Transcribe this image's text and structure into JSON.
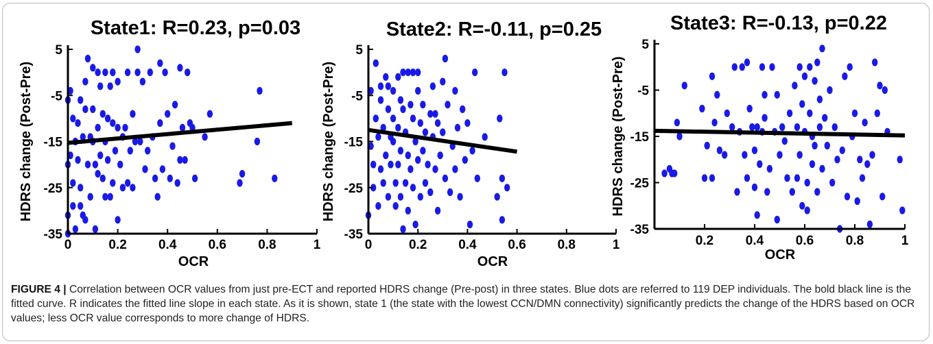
{
  "caption": {
    "label": "FIGURE 4 |",
    "text": "Correlation between OCR values from just pre-ECT and reported HDRS change (Pre-post) in three states. Blue dots are referred to 119 DEP individuals. The bold black line is the fitted curve. R indicates the fitted line slope in each state. As it is shown, state 1 (the state with the lowest CCN/DMN connectivity) significantly predicts the change of the HDRS based on OCR values; less OCR value corresponds to more change of HDRS."
  },
  "colors": {
    "dots": "#1a1ae6",
    "fit_line": "#000000"
  },
  "chart_data": [
    {
      "type": "scatter",
      "title": "State1: R=0.23, p=0.03",
      "xlabel": "OCR",
      "ylabel": "HDRS change (Post-Pre)",
      "xlim": [
        0,
        1
      ],
      "ylim": [
        -35,
        5
      ],
      "xticks": [
        "0",
        "0.2",
        "0.4",
        "0.6",
        "0.8",
        "1"
      ],
      "yticks": [
        "5",
        "-5",
        "-15",
        "-25",
        "-35"
      ],
      "grid": false,
      "fit_line": {
        "x": [
          0,
          0.9
        ],
        "y": [
          -15.3,
          -11.0
        ]
      },
      "points": [
        [
          0.0,
          -6
        ],
        [
          0.0,
          -20
        ],
        [
          0.0,
          -31
        ],
        [
          0.0,
          -35
        ],
        [
          0.01,
          -4
        ],
        [
          0.01,
          -18
        ],
        [
          0.02,
          -10
        ],
        [
          0.02,
          -24
        ],
        [
          0.02,
          -29
        ],
        [
          0.03,
          -15
        ],
        [
          0.03,
          -34
        ],
        [
          0.04,
          -11
        ],
        [
          0.04,
          -19
        ],
        [
          0.05,
          -6
        ],
        [
          0.05,
          -25
        ],
        [
          0.05,
          -29
        ],
        [
          0.06,
          -14
        ],
        [
          0.06,
          -31
        ],
        [
          0.07,
          -2
        ],
        [
          0.07,
          -8
        ],
        [
          0.07,
          -32
        ],
        [
          0.08,
          3
        ],
        [
          0.08,
          -20
        ],
        [
          0.09,
          -14
        ],
        [
          0.09,
          -27
        ],
        [
          0.1,
          1
        ],
        [
          0.1,
          -8
        ],
        [
          0.1,
          -15
        ],
        [
          0.11,
          -20
        ],
        [
          0.11,
          -34
        ],
        [
          0.12,
          0
        ],
        [
          0.12,
          -12
        ],
        [
          0.12,
          -22
        ],
        [
          0.13,
          -3
        ],
        [
          0.13,
          -18
        ],
        [
          0.14,
          -9
        ],
        [
          0.14,
          -23
        ],
        [
          0.15,
          0
        ],
        [
          0.15,
          -15
        ],
        [
          0.15,
          -27
        ],
        [
          0.16,
          -10
        ],
        [
          0.16,
          -19
        ],
        [
          0.17,
          -3
        ],
        [
          0.17,
          -27
        ],
        [
          0.18,
          0
        ],
        [
          0.18,
          -11
        ],
        [
          0.18,
          -24
        ],
        [
          0.19,
          -17
        ],
        [
          0.2,
          -2
        ],
        [
          0.2,
          -12
        ],
        [
          0.2,
          -32
        ],
        [
          0.21,
          -20
        ],
        [
          0.22,
          -14
        ],
        [
          0.22,
          -25
        ],
        [
          0.23,
          -12
        ],
        [
          0.24,
          0
        ],
        [
          0.24,
          -24
        ],
        [
          0.25,
          -17
        ],
        [
          0.26,
          -9
        ],
        [
          0.26,
          -25
        ],
        [
          0.27,
          -15
        ],
        [
          0.28,
          0
        ],
        [
          0.28,
          5
        ],
        [
          0.29,
          -15
        ],
        [
          0.3,
          -2
        ],
        [
          0.31,
          -21
        ],
        [
          0.32,
          -17
        ],
        [
          0.33,
          0
        ],
        [
          0.34,
          -14
        ],
        [
          0.35,
          -23
        ],
        [
          0.36,
          -27
        ],
        [
          0.37,
          2
        ],
        [
          0.37,
          -11
        ],
        [
          0.38,
          -21
        ],
        [
          0.39,
          0
        ],
        [
          0.4,
          -9
        ],
        [
          0.41,
          -23
        ],
        [
          0.42,
          -16
        ],
        [
          0.43,
          -7
        ],
        [
          0.44,
          -24
        ],
        [
          0.45,
          1
        ],
        [
          0.45,
          -19
        ],
        [
          0.46,
          -12
        ],
        [
          0.47,
          -19
        ],
        [
          0.48,
          0
        ],
        [
          0.49,
          -11
        ],
        [
          0.5,
          -12
        ],
        [
          0.51,
          -23
        ],
        [
          0.55,
          -14
        ],
        [
          0.57,
          -9
        ],
        [
          0.69,
          -24
        ],
        [
          0.7,
          -22
        ],
        [
          0.76,
          -15
        ],
        [
          0.77,
          -4
        ],
        [
          0.83,
          -23
        ]
      ]
    },
    {
      "type": "scatter",
      "title": "State2: R=-0.11, p=0.25",
      "xlabel": "OCR",
      "ylabel": "HDRS change (Post-Pre)",
      "xlim": [
        0,
        1
      ],
      "ylim": [
        -35,
        5
      ],
      "xticks": [
        "0",
        "0.2",
        "0.4",
        "0.6",
        "0.8",
        "1"
      ],
      "yticks": [
        "5",
        "-5",
        "-15",
        "-25",
        "-35"
      ],
      "grid": false,
      "fit_line": {
        "x": [
          0,
          0.6
        ],
        "y": [
          -12.5,
          -17.2
        ]
      },
      "points": [
        [
          0.0,
          -31
        ],
        [
          0.01,
          -4
        ],
        [
          0.01,
          -16
        ],
        [
          0.02,
          -20
        ],
        [
          0.02,
          -25
        ],
        [
          0.03,
          -10
        ],
        [
          0.03,
          2
        ],
        [
          0.04,
          -14
        ],
        [
          0.04,
          -29
        ],
        [
          0.05,
          -3
        ],
        [
          0.05,
          -21
        ],
        [
          0.05,
          -6
        ],
        [
          0.06,
          -12
        ],
        [
          0.06,
          -24
        ],
        [
          0.07,
          -1
        ],
        [
          0.07,
          -18
        ],
        [
          0.08,
          -3
        ],
        [
          0.08,
          -8
        ],
        [
          0.08,
          -27
        ],
        [
          0.09,
          -14
        ],
        [
          0.09,
          -20
        ],
        [
          0.1,
          -4
        ],
        [
          0.1,
          -10
        ],
        [
          0.1,
          -15
        ],
        [
          0.11,
          -24
        ],
        [
          0.11,
          -29
        ],
        [
          0.12,
          -1
        ],
        [
          0.12,
          -12
        ],
        [
          0.12,
          -20
        ],
        [
          0.13,
          -6
        ],
        [
          0.13,
          -17
        ],
        [
          0.13,
          -27
        ],
        [
          0.14,
          0
        ],
        [
          0.14,
          -8
        ],
        [
          0.14,
          -34
        ],
        [
          0.15,
          -13
        ],
        [
          0.15,
          -24
        ],
        [
          0.16,
          0
        ],
        [
          0.16,
          -18
        ],
        [
          0.16,
          -30
        ],
        [
          0.17,
          -7
        ],
        [
          0.17,
          -21
        ],
        [
          0.18,
          0
        ],
        [
          0.18,
          -10
        ],
        [
          0.18,
          -25
        ],
        [
          0.19,
          -15
        ],
        [
          0.19,
          -33
        ],
        [
          0.2,
          0
        ],
        [
          0.2,
          -4
        ],
        [
          0.2,
          -19
        ],
        [
          0.21,
          -11
        ],
        [
          0.21,
          -27
        ],
        [
          0.22,
          -7
        ],
        [
          0.22,
          -17
        ],
        [
          0.23,
          -13
        ],
        [
          0.23,
          -24
        ],
        [
          0.24,
          -20
        ],
        [
          0.25,
          -9
        ],
        [
          0.25,
          -26
        ],
        [
          0.26,
          -14
        ],
        [
          0.26,
          -3
        ],
        [
          0.27,
          -9
        ],
        [
          0.27,
          -21
        ],
        [
          0.28,
          -11
        ],
        [
          0.28,
          -30
        ],
        [
          0.29,
          -18
        ],
        [
          0.3,
          -2
        ],
        [
          0.3,
          -13
        ],
        [
          0.31,
          -23
        ],
        [
          0.31,
          3
        ],
        [
          0.32,
          -7
        ],
        [
          0.33,
          -26
        ],
        [
          0.34,
          -16
        ],
        [
          0.35,
          -4
        ],
        [
          0.35,
          -21
        ],
        [
          0.36,
          -12
        ],
        [
          0.37,
          -27
        ],
        [
          0.38,
          -8
        ],
        [
          0.39,
          -19
        ],
        [
          0.4,
          -11
        ],
        [
          0.41,
          -33
        ],
        [
          0.42,
          -17
        ],
        [
          0.43,
          0
        ],
        [
          0.44,
          -23
        ],
        [
          0.47,
          -14
        ],
        [
          0.52,
          -27
        ],
        [
          0.53,
          -10
        ],
        [
          0.54,
          -23
        ],
        [
          0.54,
          -32
        ],
        [
          0.55,
          0
        ],
        [
          0.56,
          -25
        ]
      ]
    },
    {
      "type": "scatter",
      "title": "State3: R=-0.13, p=0.22",
      "xlabel": "OCR",
      "ylabel": "HDRS change (Post-Pre)",
      "xlim": [
        0,
        1
      ],
      "ylim": [
        -35,
        5
      ],
      "xticks": [
        "0.2",
        "0.4",
        "0.6",
        "0.8",
        "1"
      ],
      "yticks": [
        "5",
        "-5",
        "-15",
        "-25",
        "-35"
      ],
      "grid": false,
      "fit_line": {
        "x": [
          0,
          1
        ],
        "y": [
          -13.8,
          -14.8
        ]
      },
      "points": [
        [
          0.04,
          -23
        ],
        [
          0.06,
          -22
        ],
        [
          0.07,
          -23
        ],
        [
          0.08,
          -23
        ],
        [
          0.09,
          -12
        ],
        [
          0.1,
          -15
        ],
        [
          0.12,
          -4
        ],
        [
          0.19,
          -9
        ],
        [
          0.2,
          -24
        ],
        [
          0.21,
          -17
        ],
        [
          0.23,
          -24
        ],
        [
          0.23,
          -2
        ],
        [
          0.24,
          -12
        ],
        [
          0.25,
          -6
        ],
        [
          0.26,
          -18
        ],
        [
          0.28,
          -19
        ],
        [
          0.29,
          -10
        ],
        [
          0.31,
          -13
        ],
        [
          0.32,
          0
        ],
        [
          0.33,
          -27
        ],
        [
          0.34,
          -14
        ],
        [
          0.35,
          0
        ],
        [
          0.36,
          -19
        ],
        [
          0.37,
          1
        ],
        [
          0.37,
          -24
        ],
        [
          0.38,
          -9
        ],
        [
          0.39,
          -13
        ],
        [
          0.4,
          -18
        ],
        [
          0.4,
          -26
        ],
        [
          0.41,
          -13
        ],
        [
          0.41,
          -32
        ],
        [
          0.42,
          -21
        ],
        [
          0.43,
          0
        ],
        [
          0.43,
          -14
        ],
        [
          0.44,
          -6
        ],
        [
          0.44,
          -11
        ],
        [
          0.45,
          -27
        ],
        [
          0.46,
          -22
        ],
        [
          0.47,
          0
        ],
        [
          0.48,
          -14
        ],
        [
          0.49,
          -6
        ],
        [
          0.49,
          -33
        ],
        [
          0.5,
          -19
        ],
        [
          0.51,
          -13
        ],
        [
          0.52,
          -16
        ],
        [
          0.53,
          -24
        ],
        [
          0.54,
          -10
        ],
        [
          0.55,
          -27
        ],
        [
          0.56,
          -4
        ],
        [
          0.57,
          -13
        ],
        [
          0.57,
          -24
        ],
        [
          0.58,
          0
        ],
        [
          0.58,
          -19
        ],
        [
          0.59,
          -8
        ],
        [
          0.59,
          -30
        ],
        [
          0.6,
          -2
        ],
        [
          0.6,
          -14
        ],
        [
          0.61,
          -25
        ],
        [
          0.61,
          -31
        ],
        [
          0.62,
          0
        ],
        [
          0.62,
          -10
        ],
        [
          0.63,
          -15
        ],
        [
          0.63,
          -21
        ],
        [
          0.64,
          -3
        ],
        [
          0.64,
          -17
        ],
        [
          0.65,
          1
        ],
        [
          0.65,
          -27
        ],
        [
          0.66,
          -7
        ],
        [
          0.66,
          -13
        ],
        [
          0.67,
          4
        ],
        [
          0.67,
          -22
        ],
        [
          0.68,
          -11
        ],
        [
          0.69,
          -17
        ],
        [
          0.7,
          -5
        ],
        [
          0.71,
          -25
        ],
        [
          0.72,
          -13
        ],
        [
          0.73,
          -20
        ],
        [
          0.74,
          -35
        ],
        [
          0.75,
          -18
        ],
        [
          0.76,
          -2
        ],
        [
          0.77,
          -28
        ],
        [
          0.78,
          0
        ],
        [
          0.79,
          -15
        ],
        [
          0.8,
          -10
        ],
        [
          0.81,
          -29
        ],
        [
          0.82,
          -20
        ],
        [
          0.83,
          -24
        ],
        [
          0.84,
          -12
        ],
        [
          0.85,
          -21
        ],
        [
          0.86,
          -34
        ],
        [
          0.87,
          -19
        ],
        [
          0.88,
          1
        ],
        [
          0.89,
          -10
        ],
        [
          0.9,
          -4
        ],
        [
          0.91,
          -28
        ],
        [
          0.92,
          -5
        ],
        [
          0.93,
          -14
        ],
        [
          0.98,
          -20
        ],
        [
          0.99,
          -31
        ]
      ]
    }
  ]
}
